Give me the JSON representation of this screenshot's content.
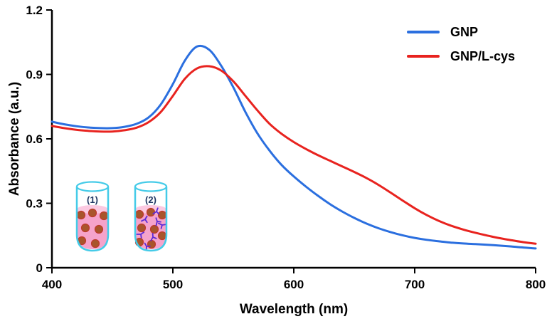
{
  "chart_data": {
    "type": "line",
    "title": "",
    "xlabel": "Wavelength (nm)",
    "ylabel": "Absorbance (a.u.)",
    "xlim": [
      400,
      800
    ],
    "ylim": [
      0,
      1.2
    ],
    "x_ticks": [
      "400",
      "500",
      "600",
      "700",
      "800"
    ],
    "y_ticks": [
      "0",
      "0.3",
      "0.6",
      "0.9",
      "1.2"
    ],
    "grid": false,
    "legend_position": "top-right",
    "series": [
      {
        "name": "GNP",
        "color": "#2b6fdf",
        "x": [
          400,
          410,
          420,
          430,
          440,
          450,
          460,
          470,
          480,
          490,
          500,
          510,
          520,
          530,
          540,
          550,
          560,
          570,
          580,
          590,
          600,
          610,
          620,
          630,
          640,
          650,
          660,
          670,
          680,
          690,
          700,
          710,
          720,
          730,
          740,
          750,
          760,
          770,
          780,
          790,
          800
        ],
        "y": [
          0.68,
          0.668,
          0.659,
          0.653,
          0.65,
          0.65,
          0.656,
          0.67,
          0.7,
          0.76,
          0.855,
          0.965,
          1.03,
          1.015,
          0.94,
          0.84,
          0.725,
          0.625,
          0.545,
          0.478,
          0.425,
          0.378,
          0.335,
          0.296,
          0.262,
          0.232,
          0.206,
          0.184,
          0.166,
          0.151,
          0.139,
          0.13,
          0.123,
          0.117,
          0.113,
          0.11,
          0.107,
          0.103,
          0.099,
          0.094,
          0.09
        ]
      },
      {
        "name": "GNP/L-cys",
        "color": "#e8231f",
        "x": [
          400,
          410,
          420,
          430,
          440,
          450,
          460,
          470,
          480,
          490,
          500,
          510,
          520,
          530,
          540,
          550,
          560,
          570,
          580,
          590,
          600,
          610,
          620,
          630,
          640,
          650,
          660,
          670,
          680,
          690,
          700,
          710,
          720,
          730,
          740,
          750,
          760,
          770,
          780,
          790,
          800
        ],
        "y": [
          0.66,
          0.65,
          0.642,
          0.637,
          0.634,
          0.634,
          0.64,
          0.652,
          0.678,
          0.725,
          0.8,
          0.88,
          0.928,
          0.938,
          0.918,
          0.868,
          0.8,
          0.732,
          0.67,
          0.623,
          0.585,
          0.553,
          0.524,
          0.498,
          0.472,
          0.446,
          0.418,
          0.386,
          0.35,
          0.313,
          0.277,
          0.245,
          0.218,
          0.196,
          0.178,
          0.163,
          0.15,
          0.138,
          0.128,
          0.119,
          0.112
        ]
      }
    ],
    "inset": {
      "vial_labels": [
        "(1)",
        "(2)"
      ],
      "colors": {
        "vial_outline": "#45cbe8",
        "liquid": "#f5a3cb",
        "liquid_surface": "#fbc9e1",
        "nanoparticle_fill": "#a8552c",
        "nanoparticle_stroke": "#c0392b",
        "ligand": "#5b2bd6",
        "label_text": "#203864"
      }
    }
  }
}
